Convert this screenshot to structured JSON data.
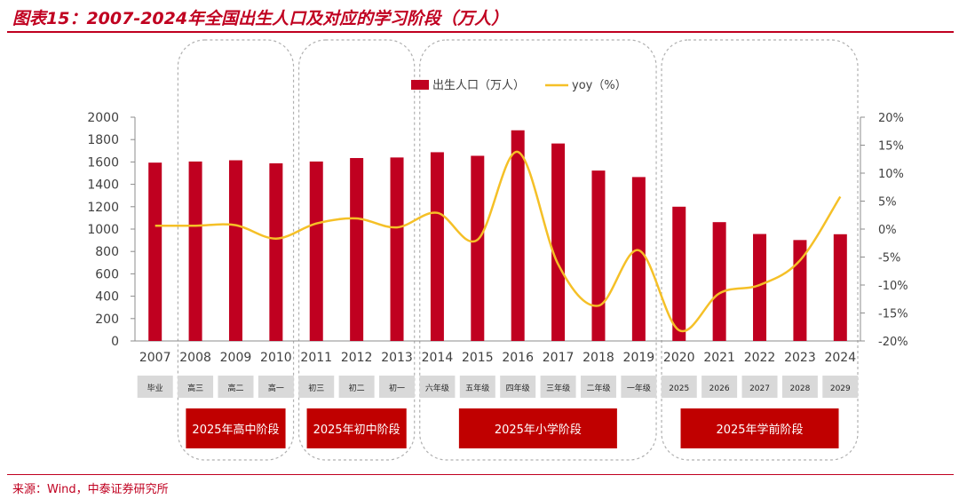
{
  "header": {
    "title": "图表15：2007-2024年全国出生人口及对应的学习阶段（万人）"
  },
  "footer": {
    "source": "来源：Wind，中泰证券研究所"
  },
  "colors": {
    "accent": "#c00020",
    "bar": "#c00020",
    "line": "#f5c027",
    "stage_box": "#c00000",
    "grade_box": "#d9d9d9",
    "group_border": "#b0b0b0"
  },
  "chart_data": {
    "type": "bar",
    "categories": [
      "2007",
      "2008",
      "2009",
      "2010",
      "2011",
      "2012",
      "2013",
      "2014",
      "2015",
      "2016",
      "2017",
      "2018",
      "2019",
      "2020",
      "2021",
      "2022",
      "2023",
      "2024"
    ],
    "series": [
      {
        "name": "出生人口（万人）",
        "type": "bar",
        "axis": "left",
        "values": [
          1594,
          1604,
          1615,
          1588,
          1604,
          1635,
          1640,
          1687,
          1655,
          1883,
          1765,
          1523,
          1465,
          1200,
          1062,
          956,
          902,
          954
        ]
      },
      {
        "name": "yoy（%）",
        "type": "line",
        "axis": "right",
        "values": [
          0.6,
          0.6,
          0.7,
          -1.7,
          1.0,
          1.9,
          0.3,
          2.9,
          -1.9,
          13.8,
          -6.3,
          -13.7,
          -3.8,
          -18.1,
          -11.5,
          -10.0,
          -5.6,
          5.8
        ]
      }
    ],
    "y_left": {
      "min": 0,
      "max": 2000,
      "ticks": [
        "0",
        "200",
        "400",
        "600",
        "800",
        "1000",
        "1200",
        "1400",
        "1600",
        "1800",
        "2000"
      ]
    },
    "y_right": {
      "min": -20,
      "max": 20,
      "ticks": [
        "-20%",
        "-15%",
        "-10%",
        "-5%",
        "0%",
        "5%",
        "10%",
        "15%",
        "20%"
      ]
    },
    "legend_position": "top-center",
    "grid": false,
    "grade_labels": [
      "毕业",
      "高三",
      "高二",
      "高一",
      "初三",
      "初二",
      "初一",
      "六年级",
      "五年级",
      "四年级",
      "三年级",
      "二年级",
      "一年级",
      "2025",
      "2026",
      "2027",
      "2028",
      "2029"
    ],
    "stage_groups": [
      {
        "label": "2025年高中阶段",
        "start": 1,
        "end": 3
      },
      {
        "label": "2025年初中阶段",
        "start": 4,
        "end": 6
      },
      {
        "label": "2025年小学阶段",
        "start": 7,
        "end": 12
      },
      {
        "label": "2025年学前阶段",
        "start": 13,
        "end": 17
      }
    ]
  }
}
